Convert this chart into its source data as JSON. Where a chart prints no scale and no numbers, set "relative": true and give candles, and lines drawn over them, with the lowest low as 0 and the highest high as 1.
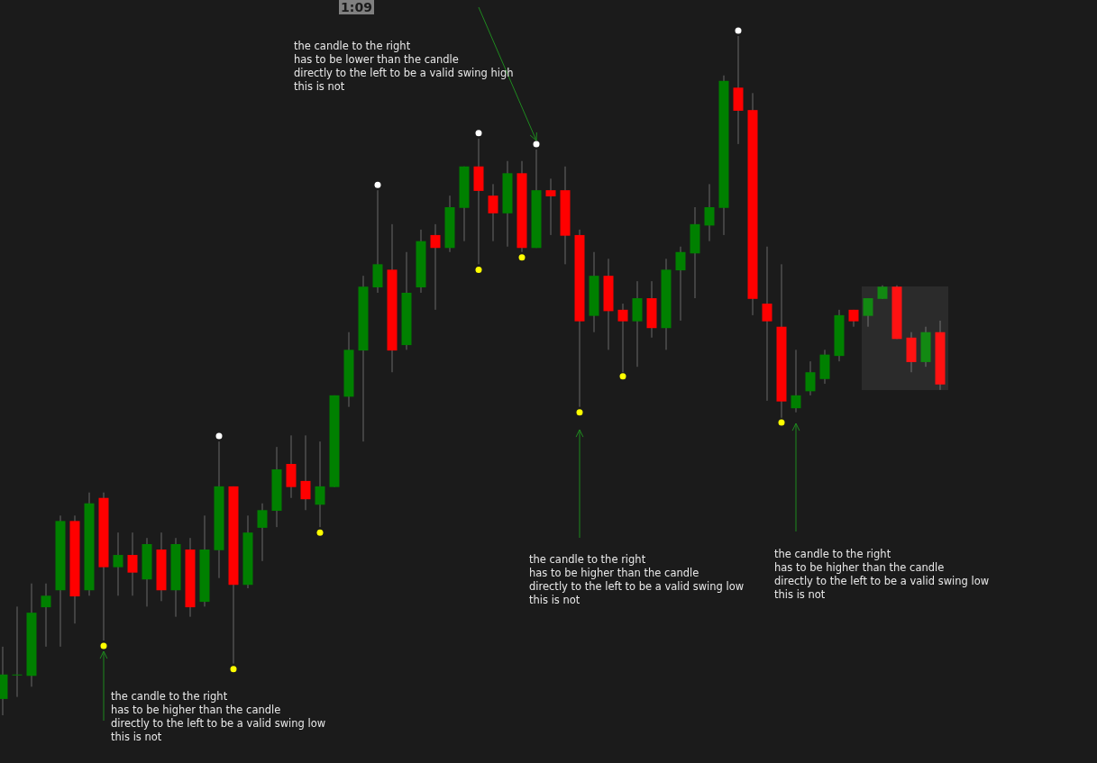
{
  "chart_data": {
    "type": "candlestick",
    "relative": true,
    "categories": [
      null,
      null,
      null,
      null,
      null,
      null,
      null,
      null,
      null,
      null,
      null,
      null,
      null,
      null,
      null,
      null,
      null,
      null,
      null,
      null,
      null,
      null,
      null,
      null,
      null,
      null,
      null,
      null,
      null,
      null,
      null,
      null,
      null,
      null,
      null,
      null,
      null,
      null,
      null,
      null,
      null,
      null,
      null,
      null,
      null,
      null,
      null,
      null,
      null,
      null,
      null,
      null,
      null,
      null,
      null,
      null,
      null,
      null,
      null,
      null,
      null,
      null,
      null,
      null,
      null,
      null
    ],
    "ohlc": [
      [
        0.024,
        0.101,
        0,
        0.06
      ],
      [
        0.06,
        0.16,
        0.027,
        0.06
      ],
      [
        0.058,
        0.194,
        0.042,
        0.151
      ],
      [
        0.159,
        0.194,
        0.101,
        0.176
      ],
      [
        0.184,
        0.294,
        0.101,
        0.286
      ],
      [
        0.286,
        0.294,
        0.135,
        0.175
      ],
      [
        0.184,
        0.328,
        0.176,
        0.312
      ],
      [
        0.32,
        0.328,
        0.11,
        0.218
      ],
      [
        0.218,
        0.269,
        0.176,
        0.236
      ],
      [
        0.236,
        0.269,
        0.176,
        0.21
      ],
      [
        0.2,
        0.261,
        0.16,
        0.252
      ],
      [
        0.244,
        0.269,
        0.168,
        0.184
      ],
      [
        0.184,
        0.261,
        0.145,
        0.252
      ],
      [
        0.244,
        0.261,
        0.145,
        0.159
      ],
      [
        0.167,
        0.294,
        0.16,
        0.244
      ],
      [
        0.243,
        0.403,
        0.202,
        0.337
      ],
      [
        0.337,
        0.337,
        0.076,
        0.192
      ],
      [
        0.192,
        0.294,
        0.187,
        0.269
      ],
      [
        0.276,
        0.312,
        0.227,
        0.302
      ],
      [
        0.301,
        0.395,
        0.277,
        0.362
      ],
      [
        0.37,
        0.412,
        0.32,
        0.336
      ],
      [
        0.345,
        0.412,
        0.302,
        0.318
      ],
      [
        0.31,
        0.403,
        0.277,
        0.337
      ],
      [
        0.336,
        0.471,
        0.336,
        0.471
      ],
      [
        0.469,
        0.564,
        0.454,
        0.538
      ],
      [
        0.537,
        0.647,
        0.403,
        0.631
      ],
      [
        0.63,
        0.773,
        0.622,
        0.664
      ],
      [
        0.656,
        0.723,
        0.505,
        0.537
      ],
      [
        0.545,
        0.682,
        0.538,
        0.622
      ],
      [
        0.63,
        0.715,
        0.622,
        0.698
      ],
      [
        0.707,
        0.723,
        0.597,
        0.688
      ],
      [
        0.688,
        0.765,
        0.682,
        0.748
      ],
      [
        0.747,
        0.808,
        0.698,
        0.808
      ],
      [
        0.808,
        0.849,
        0.664,
        0.772
      ],
      [
        0.765,
        0.782,
        0.698,
        0.739
      ],
      [
        0.739,
        0.816,
        0.69,
        0.798
      ],
      [
        0.798,
        0.816,
        0.682,
        0.688
      ],
      [
        0.688,
        0.833,
        0.688,
        0.773
      ],
      [
        0.773,
        0.79,
        0.707,
        0.764
      ],
      [
        0.773,
        0.808,
        0.664,
        0.706
      ],
      [
        0.707,
        0.715,
        0.454,
        0.58
      ],
      [
        0.588,
        0.682,
        0.564,
        0.647
      ],
      [
        0.647,
        0.672,
        0.538,
        0.595
      ],
      [
        0.597,
        0.606,
        0.505,
        0.58
      ],
      [
        0.58,
        0.639,
        0.513,
        0.614
      ],
      [
        0.614,
        0.639,
        0.556,
        0.57
      ],
      [
        0.57,
        0.672,
        0.538,
        0.656
      ],
      [
        0.655,
        0.69,
        0.581,
        0.682
      ],
      [
        0.68,
        0.748,
        0.614,
        0.723
      ],
      [
        0.721,
        0.782,
        0.698,
        0.748
      ],
      [
        0.747,
        0.942,
        0.707,
        0.934
      ],
      [
        0.924,
        1.0,
        0.841,
        0.89
      ],
      [
        0.891,
        0.916,
        0.589,
        0.613
      ],
      [
        0.606,
        0.69,
        0.463,
        0.58
      ],
      [
        0.572,
        0.664,
        0.438,
        0.462
      ],
      [
        0.452,
        0.538,
        0.446,
        0.471
      ],
      [
        0.477,
        0.521,
        0.471,
        0.505
      ],
      [
        0.495,
        0.538,
        0.488,
        0.531
      ],
      [
        0.529,
        0.597,
        0.521,
        0.589
      ],
      [
        0.597,
        0.597,
        0.572,
        0.58
      ],
      [
        0.588,
        0.614,
        0.572,
        0.614
      ],
      [
        0.613,
        0.633,
        0.613,
        0.631
      ],
      [
        0.631,
        0.633,
        0.554,
        0.554
      ],
      [
        0.556,
        0.564,
        0.505,
        0.52
      ],
      [
        0.52,
        0.572,
        0.513,
        0.564
      ],
      [
        0.564,
        0.581,
        0.479,
        0.487
      ]
    ],
    "series": [
      {
        "type": "scatter",
        "color": "#ffffff",
        "values": [
          null,
          null,
          null,
          null,
          null,
          null,
          null,
          null,
          null,
          null,
          null,
          null,
          null,
          null,
          null,
          0.411,
          null,
          null,
          null,
          null,
          null,
          null,
          null,
          null,
          null,
          null,
          0.781,
          null,
          null,
          null,
          null,
          null,
          null,
          0.857,
          null,
          null,
          null,
          0.841,
          null,
          null,
          null,
          null,
          null,
          null,
          null,
          null,
          null,
          null,
          null,
          null,
          null,
          1.008,
          null,
          null,
          null,
          null,
          null,
          null,
          null,
          null,
          null,
          null,
          null,
          null,
          null,
          null
        ]
      },
      {
        "type": "scatter",
        "color": "#ffff00",
        "values": [
          null,
          null,
          null,
          null,
          null,
          null,
          null,
          0.102,
          null,
          null,
          null,
          null,
          null,
          null,
          null,
          null,
          0.068,
          null,
          null,
          null,
          null,
          null,
          0.269,
          null,
          null,
          null,
          null,
          null,
          null,
          null,
          null,
          null,
          null,
          0.656,
          null,
          null,
          0.674,
          null,
          null,
          null,
          0.446,
          null,
          null,
          0.499,
          null,
          null,
          null,
          null,
          null,
          null,
          null,
          null,
          null,
          null,
          0.431,
          null,
          null,
          null,
          null,
          null,
          null,
          null,
          null,
          null,
          null,
          null
        ]
      }
    ],
    "marker": "circle",
    "annotations": [
      "1:09",
      "the candle to the right\nhas to be lower than the candle\ndirectly to the left to be a valid swing high\nthis is not",
      "the candle to the right\nhas to be higher than the candle\ndirectly to the left to be a valid swing low\nthis is not",
      "the candle to the right\nhas to be higher than the candle\ndirectly to the left to be a valid swing low\nthis is not",
      "the candle to the right\nhas to be higher than the candle\ndirectly to the left to be a valid swing low\nthis is not"
    ],
    "grid": false
  }
}
